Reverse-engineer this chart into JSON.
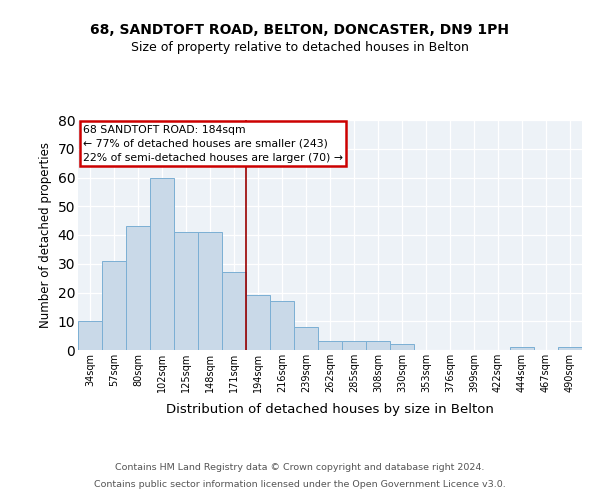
{
  "title1": "68, SANDTOFT ROAD, BELTON, DONCASTER, DN9 1PH",
  "title2": "Size of property relative to detached houses in Belton",
  "xlabel": "Distribution of detached houses by size in Belton",
  "ylabel": "Number of detached properties",
  "footnote1": "Contains HM Land Registry data © Crown copyright and database right 2024.",
  "footnote2": "Contains public sector information licensed under the Open Government Licence v3.0.",
  "categories": [
    "34sqm",
    "57sqm",
    "80sqm",
    "102sqm",
    "125sqm",
    "148sqm",
    "171sqm",
    "194sqm",
    "216sqm",
    "239sqm",
    "262sqm",
    "285sqm",
    "308sqm",
    "330sqm",
    "353sqm",
    "376sqm",
    "399sqm",
    "422sqm",
    "444sqm",
    "467sqm",
    "490sqm"
  ],
  "values": [
    10,
    31,
    43,
    60,
    41,
    41,
    27,
    19,
    17,
    8,
    3,
    3,
    3,
    2,
    0,
    0,
    0,
    0,
    1,
    0,
    1
  ],
  "bar_color": "#c9d9e8",
  "bar_edge_color": "#7bafd4",
  "annotation_title": "68 SANDTOFT ROAD: 184sqm",
  "annotation_line1": "← 77% of detached houses are smaller (243)",
  "annotation_line2": "22% of semi-detached houses are larger (70) →",
  "vline_color": "#990000",
  "annotation_box_edge": "#cc0000",
  "ylim": [
    0,
    80
  ],
  "yticks": [
    0,
    10,
    20,
    30,
    40,
    50,
    60,
    70,
    80
  ],
  "background_color": "#edf2f7",
  "vline_x": 7.0
}
